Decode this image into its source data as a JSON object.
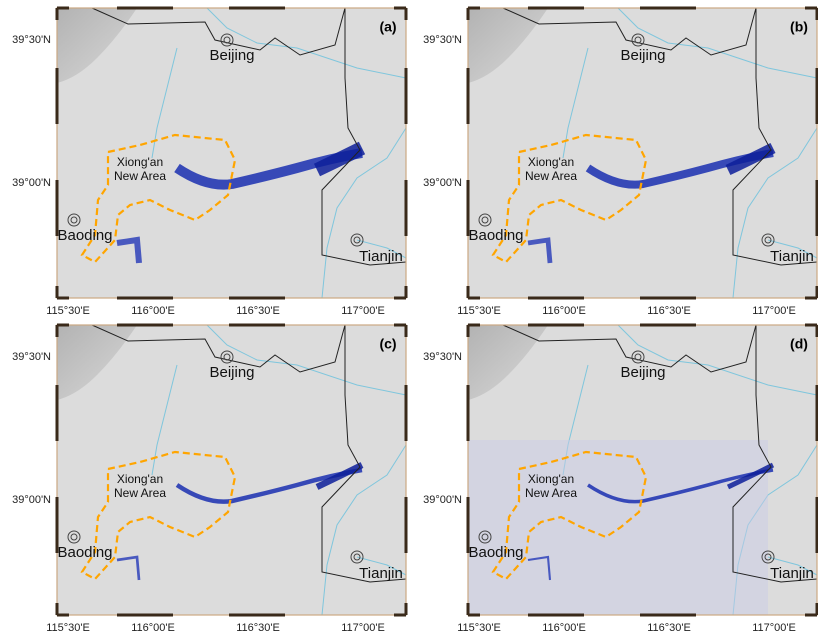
{
  "panels": [
    {
      "label": "(a)"
    },
    {
      "label": "(b)"
    },
    {
      "label": "(c)"
    },
    {
      "label": "(d)"
    }
  ],
  "axes": {
    "y_ticks": [
      "39°30'N",
      "39°00'N"
    ],
    "x_ticks": [
      "115°30'E",
      "116°00'E",
      "116°30'E",
      "117°00'E"
    ]
  },
  "places": {
    "beijing": "Beijing",
    "tianjin": "Tianjin",
    "baoding": "Baoding",
    "xiongan": [
      "Xiong'an",
      "New Area"
    ]
  }
}
